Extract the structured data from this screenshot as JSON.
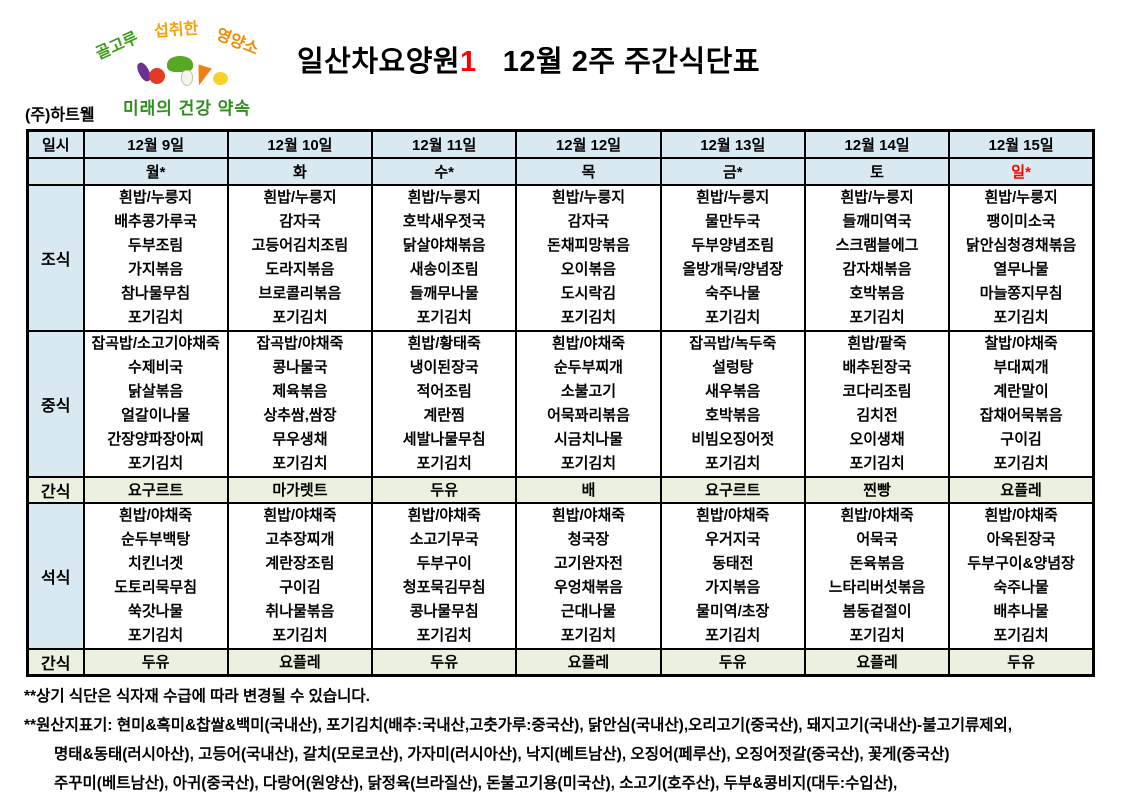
{
  "logo": {
    "arc_words": [
      "골고루",
      "섭취한",
      "영양소"
    ],
    "bottom_text": "미래의 건강 약속"
  },
  "header": {
    "facility": "일산차요양원",
    "facility_number": "1",
    "title": "12월 2주 주간식단표",
    "company": "(주)하트웰"
  },
  "table": {
    "corner_label": "일시",
    "days": [
      {
        "date": "12월 9일",
        "weekday": "월*",
        "holiday": false
      },
      {
        "date": "12월 10일",
        "weekday": "화",
        "holiday": false
      },
      {
        "date": "12월 11일",
        "weekday": "수*",
        "holiday": false
      },
      {
        "date": "12월 12일",
        "weekday": "목",
        "holiday": false
      },
      {
        "date": "12월 13일",
        "weekday": "금*",
        "holiday": false
      },
      {
        "date": "12월 14일",
        "weekday": "토",
        "holiday": false
      },
      {
        "date": "12월 15일",
        "weekday": "일*",
        "holiday": true
      }
    ],
    "rows": [
      {
        "label": "조식",
        "key": "breakfast",
        "type": "meal",
        "menus": [
          [
            "흰밥/누룽지",
            "배추콩가루국",
            "두부조림",
            "가지볶음",
            "참나물무침",
            "포기김치"
          ],
          [
            "흰밥/누룽지",
            "감자국",
            "고등어김치조림",
            "도라지볶음",
            "브로콜리볶음",
            "포기김치"
          ],
          [
            "흰밥/누룽지",
            "호박새우젓국",
            "닭살야채볶음",
            "새송이조림",
            "들깨무나물",
            "포기김치"
          ],
          [
            "흰밥/누룽지",
            "감자국",
            "돈채피망볶음",
            "오이볶음",
            "도시락김",
            "포기김치"
          ],
          [
            "흰밥/누룽지",
            "물만두국",
            "두부양념조림",
            "올방개묵/양념장",
            "숙주나물",
            "포기김치"
          ],
          [
            "흰밥/누룽지",
            "들깨미역국",
            "스크램블에그",
            "감자채볶음",
            "호박볶음",
            "포기김치"
          ],
          [
            "흰밥/누룽지",
            "팽이미소국",
            "닭안심청경채볶음",
            "열무나물",
            "마늘쫑지무침",
            "포기김치"
          ]
        ]
      },
      {
        "label": "중식",
        "key": "lunch",
        "type": "meal",
        "menus": [
          [
            "잡곡밥/소고기야채죽",
            "수제비국",
            "닭살볶음",
            "얼갈이나물",
            "간장양파장아찌",
            "포기김치"
          ],
          [
            "잡곡밥/야채죽",
            "콩나물국",
            "제육볶음",
            "상추쌈,쌈장",
            "무우생채",
            "포기김치"
          ],
          [
            "흰밥/황태죽",
            "냉이된장국",
            "적어조림",
            "계란찜",
            "세발나물무침",
            "포기김치"
          ],
          [
            "흰밥/야채죽",
            "순두부찌개",
            "소불고기",
            "어묵꽈리볶음",
            "시금치나물",
            "포기김치"
          ],
          [
            "잡곡밥/녹두죽",
            "설렁탕",
            "새우볶음",
            "호박볶음",
            "비빔오징어젓",
            "포기김치"
          ],
          [
            "흰밥/팥죽",
            "배추된장국",
            "코다리조림",
            "김치전",
            "오이생채",
            "포기김치"
          ],
          [
            "찰밥/야채죽",
            "부대찌개",
            "계란말이",
            "잡채어묵볶음",
            "구이김",
            "포기김치"
          ]
        ]
      },
      {
        "label": "간식",
        "key": "snack-afternoon",
        "type": "snack",
        "items": [
          "요구르트",
          "마가렛트",
          "두유",
          "배",
          "요구르트",
          "찐빵",
          "요플레"
        ]
      },
      {
        "label": "석식",
        "key": "dinner",
        "type": "meal",
        "menus": [
          [
            "흰밥/야채죽",
            "순두부백탕",
            "치킨너겟",
            "도토리묵무침",
            "쑥갓나물",
            "포기김치"
          ],
          [
            "흰밥/야채죽",
            "고추장찌개",
            "계란장조림",
            "구이김",
            "취나물볶음",
            "포기김치"
          ],
          [
            "흰밥/야채죽",
            "소고기무국",
            "두부구이",
            "청포묵김무침",
            "콩나물무침",
            "포기김치"
          ],
          [
            "흰밥/야채죽",
            "청국장",
            "고기완자전",
            "우엉채볶음",
            "근대나물",
            "포기김치"
          ],
          [
            "흰밥/야채죽",
            "우거지국",
            "동태전",
            "가지볶음",
            "물미역/초장",
            "포기김치"
          ],
          [
            "흰밥/야채죽",
            "어묵국",
            "돈육볶음",
            "느타리버섯볶음",
            "봄동겉절이",
            "포기김치"
          ],
          [
            "흰밥/야채죽",
            "아욱된장국",
            "두부구이&양념장",
            "숙주나물",
            "배추나물",
            "포기김치"
          ]
        ]
      },
      {
        "label": "간식",
        "key": "snack-evening",
        "type": "snack",
        "items": [
          "두유",
          "요플레",
          "두유",
          "요플레",
          "두유",
          "요플레",
          "두유"
        ]
      }
    ]
  },
  "footnotes": [
    "**상기 식단은 식자재 수급에 따라 변경될 수 있습니다.",
    "**원산지표기: 현미&흑미&찹쌀&백미(국내산), 포기김치(배추:국내산,고춧가루:중국산), 닭안심(국내산),오리고기(중국산), 돼지고기(국내산)-불고기류제외,",
    "명태&동태(러시아산), 고등어(국내산), 갈치(모로코산), 가자미(러시아산), 낙지(베트남산), 오징어(페루산), 오징어젓갈(중국산),  꽃게(중국산)",
    "주꾸미(베트남산), 아귀(중국산), 다랑어(원양산), 닭정육(브라질산), 돈불고기용(미국산), 소고기(호주산), 두부&콩비지(대두:수입산),"
  ],
  "colors": {
    "header_bg": "#d9e9f1",
    "snack_bg": "#ebf1de",
    "holiday_red": "#ff0000",
    "accent_red": "#ff0000"
  }
}
